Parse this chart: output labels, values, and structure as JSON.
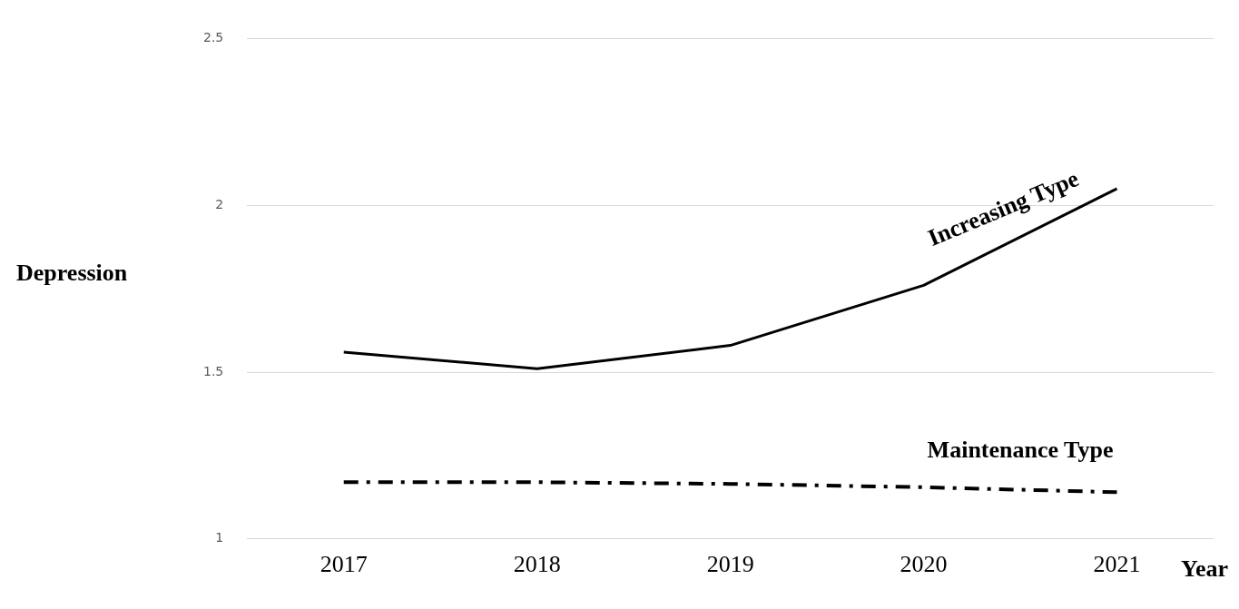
{
  "chart_data": {
    "type": "line",
    "xlabel": "Year",
    "ylabel": "Depression",
    "categories": [
      "2017",
      "2018",
      "2019",
      "2020",
      "2021"
    ],
    "series": [
      {
        "name": "Increasing Type",
        "color": "#000000",
        "values": [
          1.56,
          1.51,
          1.58,
          1.76,
          2.05
        ],
        "line_style": "solid"
      },
      {
        "name": "Maintenance Type",
        "color": "#000000",
        "values": [
          1.17,
          1.17,
          1.165,
          1.155,
          1.14
        ],
        "line_style": "dashed"
      }
    ],
    "ylim": [
      1,
      2.5
    ],
    "yticks": [
      1,
      1.5,
      2,
      2.5
    ],
    "grid": "y",
    "legend": false,
    "marker": "none"
  }
}
